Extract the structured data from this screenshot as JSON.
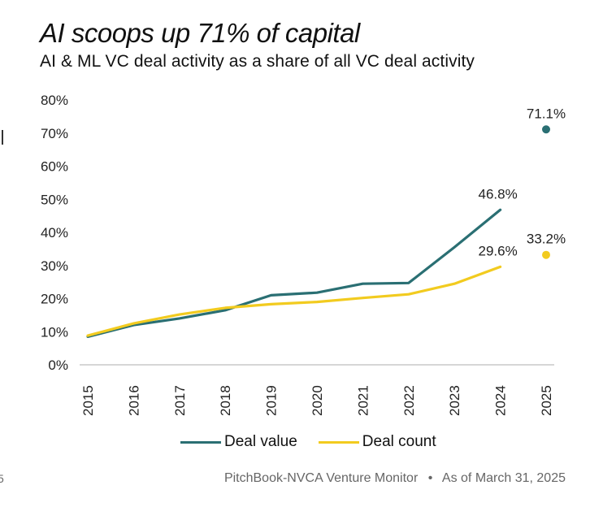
{
  "header": {
    "title": "AI scoops up 71% of capital",
    "subtitle": "AI & ML VC deal activity as a share of all VC deal activity"
  },
  "footer": {
    "source": "PitchBook-NVCA Venture Monitor",
    "separator": "•",
    "date": "As of March 31, 2025",
    "left_fragment": "5"
  },
  "colors": {
    "deal_value": "#2a6f73",
    "deal_count": "#f2cb1f",
    "baseline": "#bdbdbd"
  },
  "chart_data": {
    "type": "line",
    "title": "AI scoops up 71% of capital",
    "subtitle": "AI & ML VC deal activity as a share of all VC deal activity",
    "xlabel": "",
    "ylabel": "",
    "x": [
      "2015",
      "2016",
      "2017",
      "2018",
      "2019",
      "2020",
      "2021",
      "2022",
      "2023",
      "2024",
      "2025"
    ],
    "ylim": [
      0,
      80
    ],
    "yticks": [
      0,
      10,
      20,
      30,
      40,
      50,
      60,
      70,
      80
    ],
    "ytick_labels": [
      "0%",
      "10%",
      "20%",
      "30%",
      "40%",
      "50%",
      "60%",
      "70%",
      "80%"
    ],
    "grid": false,
    "legend_position": "bottom-center",
    "series": [
      {
        "name": "Deal value",
        "color": "#2a6f73",
        "values": [
          8.5,
          12.0,
          14.0,
          16.5,
          21.0,
          21.8,
          24.5,
          24.7,
          35.5,
          46.8,
          null
        ],
        "point_2025": 71.1,
        "labels": [
          {
            "x": "2024",
            "text": "46.8%"
          },
          {
            "x": "2025",
            "text": "71.1%"
          }
        ]
      },
      {
        "name": "Deal count",
        "color": "#f2cb1f",
        "values": [
          8.8,
          12.5,
          15.2,
          17.2,
          18.3,
          19.0,
          20.2,
          21.3,
          24.5,
          29.6,
          null
        ],
        "point_2025": 33.2,
        "labels": [
          {
            "x": "2024",
            "text": "29.6%"
          },
          {
            "x": "2025",
            "text": "33.2%"
          }
        ]
      }
    ]
  }
}
